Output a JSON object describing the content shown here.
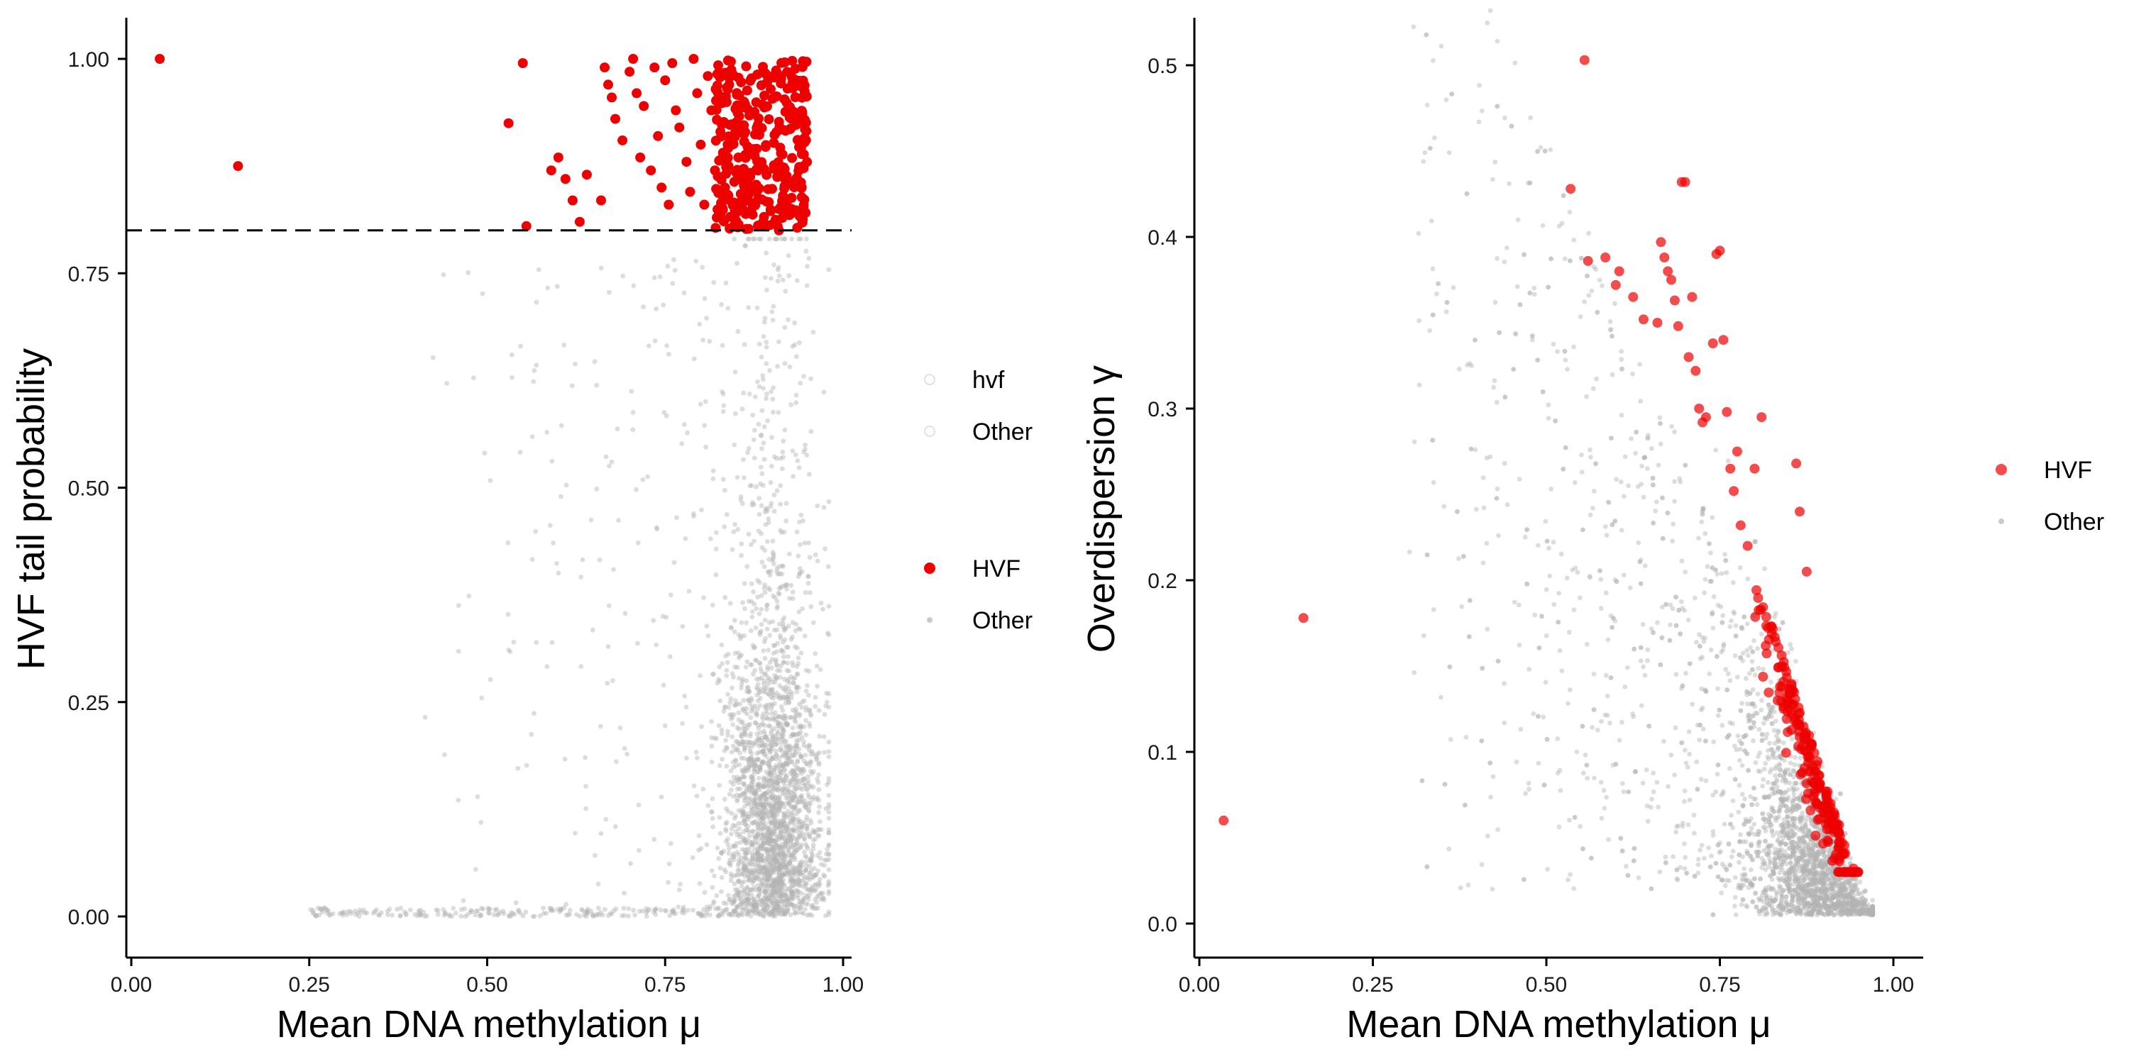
{
  "colors": {
    "hvf": "#ee0000",
    "other": "#b4b4b4",
    "axis": "#000000"
  },
  "chart_data": [
    {
      "type": "scatter",
      "xlabel": "Mean DNA methylation μ",
      "ylabel": "HVF tail probability",
      "xlim": [
        0,
        1
      ],
      "ylim": [
        0,
        1
      ],
      "x_ticks": [
        "0.00",
        "0.25",
        "0.50",
        "0.75",
        "1.00"
      ],
      "y_ticks": [
        "0.00",
        "0.25",
        "0.50",
        "0.75",
        "1.00"
      ],
      "threshold": 0.8,
      "grid": false,
      "legend_position": "right",
      "legend_groups": [
        {
          "entries": [
            {
              "label": "hvf",
              "symbol": "open"
            },
            {
              "label": "Other",
              "symbol": "open"
            }
          ]
        },
        {
          "entries": [
            {
              "label": "HVF",
              "symbol": "red"
            },
            {
              "label": "Other",
              "symbol": "grey"
            }
          ]
        }
      ],
      "series": [
        {
          "name": "HVF",
          "color": "#ee0000",
          "points": [
            [
              0.04,
              1.0
            ],
            [
              0.15,
              0.875
            ],
            [
              0.53,
              0.925
            ],
            [
              0.55,
              0.995
            ],
            [
              0.555,
              0.805
            ],
            [
              0.59,
              0.87
            ],
            [
              0.6,
              0.885
            ],
            [
              0.61,
              0.86
            ],
            [
              0.62,
              0.835
            ],
            [
              0.63,
              0.81
            ],
            [
              0.64,
              0.865
            ],
            [
              0.66,
              0.835
            ],
            [
              0.665,
              0.99
            ],
            [
              0.67,
              0.97
            ],
            [
              0.675,
              0.955
            ],
            [
              0.68,
              0.93
            ],
            [
              0.69,
              0.905
            ],
            [
              0.7,
              0.985
            ],
            [
              0.705,
              1.0
            ],
            [
              0.71,
              0.96
            ],
            [
              0.715,
              0.885
            ],
            [
              0.72,
              0.945
            ],
            [
              0.73,
              0.87
            ],
            [
              0.735,
              0.99
            ],
            [
              0.74,
              0.91
            ],
            [
              0.745,
              0.85
            ],
            [
              0.75,
              0.975
            ],
            [
              0.755,
              0.83
            ],
            [
              0.76,
              0.995
            ],
            [
              0.765,
              0.94
            ],
            [
              0.77,
              0.92
            ],
            [
              0.78,
              0.88
            ],
            [
              0.785,
              0.845
            ],
            [
              0.79,
              1.0
            ],
            [
              0.795,
              0.96
            ],
            [
              0.8,
              0.9
            ],
            [
              0.805,
              0.83
            ],
            [
              0.81,
              0.98
            ],
            [
              0.815,
              0.94
            ],
            [
              0.82,
              0.87
            ]
          ],
          "cluster": {
            "x_range": [
              0.82,
              0.95
            ],
            "y_range": [
              0.8,
              1.0
            ],
            "count": 320
          }
        },
        {
          "name": "Other",
          "color": "#b4b4b4",
          "description_free": true,
          "cluster": {
            "x_center": 0.9,
            "count": 3000
          }
        }
      ]
    },
    {
      "type": "scatter",
      "xlabel": "Mean DNA methylation μ",
      "ylabel": "Overdispersion γ",
      "xlim": [
        0,
        1
      ],
      "ylim": [
        0,
        0.52
      ],
      "x_ticks": [
        "0.00",
        "0.25",
        "0.50",
        "0.75",
        "1.00"
      ],
      "y_ticks": [
        "0.0",
        "0.1",
        "0.2",
        "0.3",
        "0.4",
        "0.5"
      ],
      "grid": false,
      "legend_position": "right",
      "legend_groups": [
        {
          "entries": [
            {
              "label": "HVF",
              "symbol": "red"
            },
            {
              "label": "Other",
              "symbol": "grey"
            }
          ]
        }
      ],
      "series": [
        {
          "name": "HVF",
          "color": "#ee0000",
          "points": [
            [
              0.035,
              0.06
            ],
            [
              0.15,
              0.178
            ],
            [
              0.535,
              0.428
            ],
            [
              0.555,
              0.503
            ],
            [
              0.56,
              0.386
            ],
            [
              0.585,
              0.388
            ],
            [
              0.6,
              0.372
            ],
            [
              0.605,
              0.38
            ],
            [
              0.625,
              0.365
            ],
            [
              0.64,
              0.352
            ],
            [
              0.66,
              0.35
            ],
            [
              0.665,
              0.397
            ],
            [
              0.67,
              0.388
            ],
            [
              0.675,
              0.38
            ],
            [
              0.68,
              0.375
            ],
            [
              0.685,
              0.363
            ],
            [
              0.69,
              0.348
            ],
            [
              0.695,
              0.432
            ],
            [
              0.7,
              0.432
            ],
            [
              0.705,
              0.33
            ],
            [
              0.71,
              0.365
            ],
            [
              0.715,
              0.322
            ],
            [
              0.72,
              0.3
            ],
            [
              0.725,
              0.292
            ],
            [
              0.73,
              0.295
            ],
            [
              0.74,
              0.338
            ],
            [
              0.745,
              0.39
            ],
            [
              0.75,
              0.392
            ],
            [
              0.755,
              0.34
            ],
            [
              0.76,
              0.298
            ],
            [
              0.765,
              0.265
            ],
            [
              0.77,
              0.252
            ],
            [
              0.775,
              0.275
            ],
            [
              0.78,
              0.232
            ],
            [
              0.79,
              0.22
            ],
            [
              0.8,
              0.265
            ],
            [
              0.81,
              0.295
            ],
            [
              0.86,
              0.268
            ],
            [
              0.865,
              0.24
            ],
            [
              0.875,
              0.205
            ]
          ],
          "cluster": {
            "x_range": [
              0.8,
              0.95
            ],
            "y_range": [
              0.03,
              0.23
            ],
            "count": 220
          }
        },
        {
          "name": "Other",
          "color": "#b4b4b4",
          "cluster": {
            "x_center": 0.9,
            "count": 3000
          }
        }
      ]
    }
  ]
}
